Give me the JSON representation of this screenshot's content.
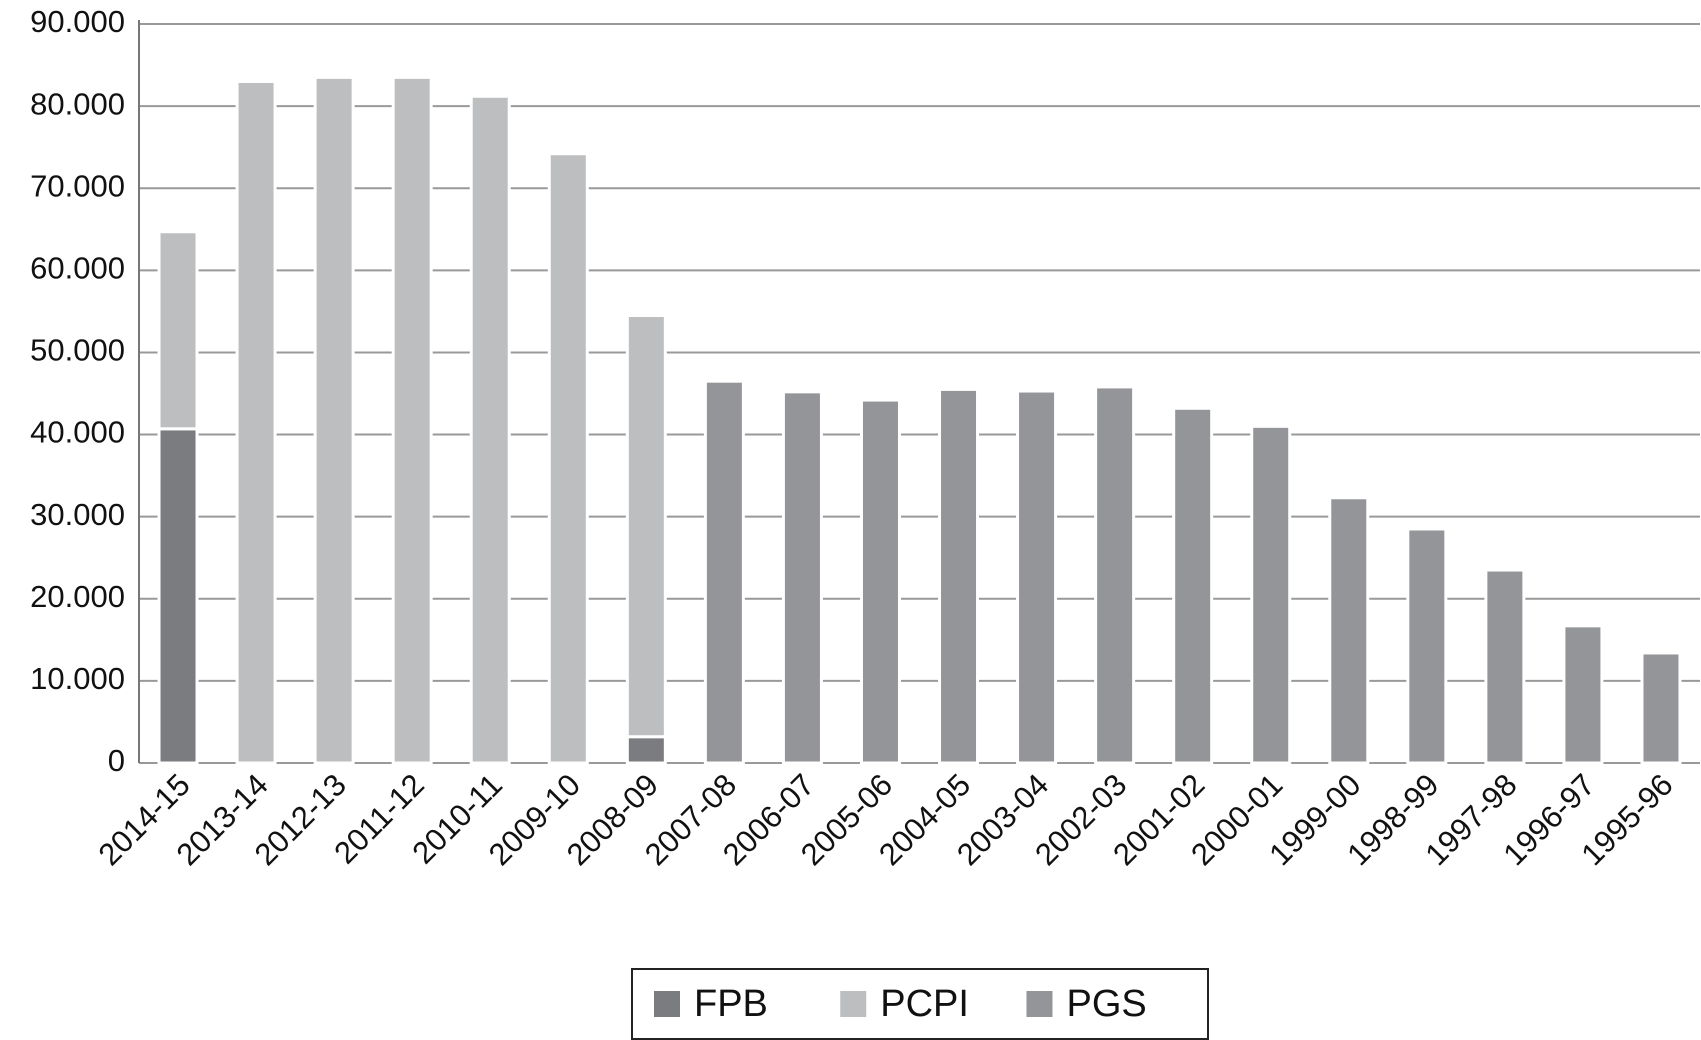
{
  "chart_data": {
    "type": "stacked-bar",
    "categories": [
      "2014-15",
      "2013-14",
      "2012-13",
      "2011-12",
      "2010-11",
      "2009-10",
      "2008-09",
      "2007-08",
      "2006-07",
      "2005-06",
      "2004-05",
      "2003-04",
      "2002-03",
      "2001-02",
      "2000-01",
      "1999-00",
      "1998-99",
      "1997-98",
      "1996-97",
      "1995-96"
    ],
    "series": [
      {
        "name": "FPB",
        "color": "#7b7c7f",
        "values": [
          40.7,
          null,
          null,
          null,
          null,
          null,
          3.2,
          null,
          null,
          null,
          null,
          null,
          null,
          null,
          null,
          null,
          null,
          null,
          null,
          null
        ]
      },
      {
        "name": "PCPI",
        "color": "#bcbec0",
        "values": [
          24.0,
          83.0,
          83.5,
          83.5,
          81.2,
          74.2,
          51.3,
          null,
          null,
          null,
          null,
          null,
          null,
          null,
          null,
          null,
          null,
          null,
          null,
          null
        ]
      },
      {
        "name": "PGS",
        "color": "#939598",
        "values": [
          null,
          null,
          null,
          null,
          null,
          null,
          null,
          46.5,
          45.2,
          44.2,
          45.5,
          45.3,
          45.8,
          43.2,
          41.0,
          32.3,
          28.5,
          23.5,
          16.7,
          13.4
        ]
      }
    ],
    "ylim": [
      0,
      90
    ],
    "yticks": [
      0,
      {
        "value": 10,
        "label": "10.000"
      },
      {
        "value": 20,
        "label": "20.000"
      },
      {
        "value": 30,
        "label": "30.000"
      },
      {
        "value": 40,
        "label": "40.000"
      },
      {
        "value": 50,
        "label": "50.000"
      },
      {
        "value": 60,
        "label": "60.000"
      },
      {
        "value": 70,
        "label": "70.000"
      },
      {
        "value": 80,
        "label": "80.000"
      },
      {
        "value": 90,
        "label": "90.000"
      }
    ],
    "grid": true,
    "legend": "bottom"
  }
}
